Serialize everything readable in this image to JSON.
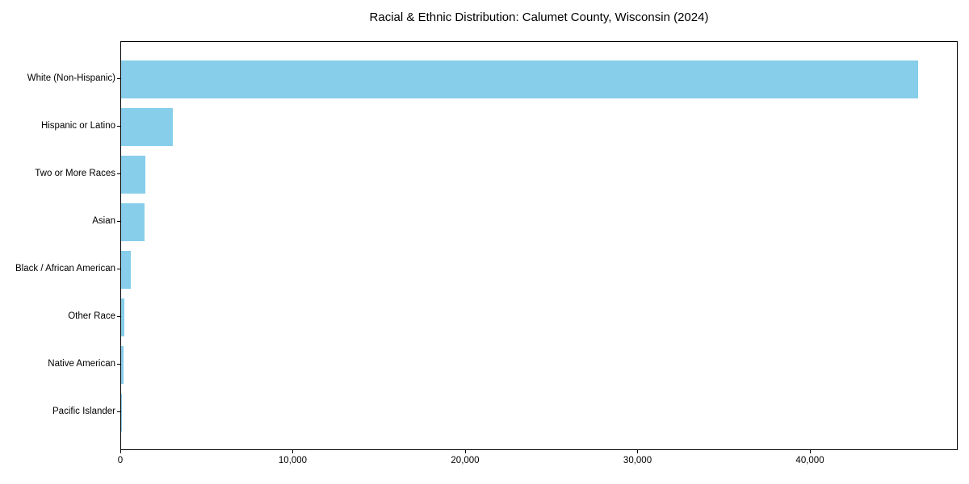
{
  "chart_data": {
    "type": "bar",
    "orientation": "horizontal",
    "title": "Racial & Ethnic Distribution: Calumet County, Wisconsin (2024)",
    "categories": [
      "White (Non-Hispanic)",
      "Hispanic or Latino",
      "Two or More Races",
      "Asian",
      "Black / African American",
      "Other Race",
      "Native American",
      "Pacific Islander"
    ],
    "values": [
      46230,
      3000,
      1420,
      1380,
      550,
      170,
      140,
      20
    ],
    "xlabel": "",
    "ylabel": "",
    "x_ticks": [
      0,
      10000,
      20000,
      30000,
      40000
    ],
    "x_tick_labels": [
      "0",
      "10,000",
      "20,000",
      "30,000",
      "40,000"
    ],
    "xlim": [
      0,
      48570
    ],
    "grid": false,
    "legend": null,
    "bar_color": "#87CEEB",
    "axis_color": "#000000",
    "background_color": "#ffffff"
  }
}
